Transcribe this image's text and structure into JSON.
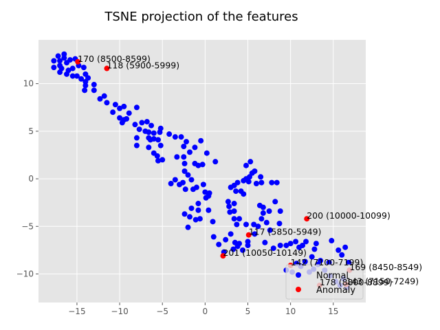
{
  "chart_data": {
    "type": "scatter",
    "title": "TSNE projection of the features",
    "xlabel": "",
    "ylabel": "",
    "xlim": [
      -19.5,
      18.8
    ],
    "ylim": [
      -13.0,
      14.6
    ],
    "xticks": [
      -15,
      -10,
      -5,
      0,
      5,
      10,
      15
    ],
    "yticks": [
      -10,
      -5,
      0,
      5,
      10
    ],
    "grid": true,
    "legend_position": "lower-right",
    "series": [
      {
        "name": "Normal",
        "color": "#0000ff",
        "points": [
          [
            -17.2,
            12.9
          ],
          [
            -16.5,
            13.1
          ],
          [
            -16.5,
            12.7
          ],
          [
            -17.7,
            12.4
          ],
          [
            -17.0,
            12.4
          ],
          [
            -16.2,
            12.2
          ],
          [
            -15.8,
            12.5
          ],
          [
            -15.2,
            12.6
          ],
          [
            -17.7,
            11.7
          ],
          [
            -17.0,
            11.9
          ],
          [
            -16.8,
            11.6
          ],
          [
            -16.0,
            11.4
          ],
          [
            -15.5,
            11.6
          ],
          [
            -14.8,
            11.9
          ],
          [
            -17.0,
            11.2
          ],
          [
            -16.2,
            11.0
          ],
          [
            -15.5,
            10.8
          ],
          [
            -15.0,
            10.8
          ],
          [
            -14.2,
            11.7
          ],
          [
            -14.0,
            11.0
          ],
          [
            -14.5,
            10.5
          ],
          [
            -14.0,
            10.2
          ],
          [
            -13.7,
            10.6
          ],
          [
            -13.0,
            9.9
          ],
          [
            -14.0,
            9.8
          ],
          [
            -14.1,
            9.3
          ],
          [
            -13.0,
            9.3
          ],
          [
            -12.3,
            8.4
          ],
          [
            -11.8,
            8.7
          ],
          [
            -11.5,
            8.0
          ],
          [
            -10.8,
            7.0
          ],
          [
            -10.5,
            7.8
          ],
          [
            -10.0,
            7.4
          ],
          [
            -9.5,
            7.6
          ],
          [
            -8.9,
            6.9
          ],
          [
            -10.0,
            6.4
          ],
          [
            -9.7,
            5.9
          ],
          [
            -9.5,
            6.2
          ],
          [
            -9.2,
            6.3
          ],
          [
            -8.0,
            7.5
          ],
          [
            -8.2,
            5.7
          ],
          [
            -7.7,
            5.2
          ],
          [
            -7.4,
            5.9
          ],
          [
            -6.8,
            6.0
          ],
          [
            -7.0,
            5.0
          ],
          [
            -6.3,
            5.6
          ],
          [
            -6.6,
            4.9
          ],
          [
            -6.0,
            4.8
          ],
          [
            -5.2,
            5.3
          ],
          [
            -5.3,
            4.9
          ],
          [
            -8.0,
            4.3
          ],
          [
            -8.0,
            3.5
          ],
          [
            -6.6,
            4.3
          ],
          [
            -6.4,
            4.1
          ],
          [
            -6.0,
            4.2
          ],
          [
            -5.5,
            4.1
          ],
          [
            -4.2,
            4.7
          ],
          [
            -3.5,
            4.4
          ],
          [
            -2.8,
            4.4
          ],
          [
            -5.2,
            3.5
          ],
          [
            -6.6,
            3.3
          ],
          [
            -6.0,
            2.7
          ],
          [
            -5.6,
            2.4
          ],
          [
            -5.0,
            2.0
          ],
          [
            -5.5,
            1.9
          ],
          [
            -3.3,
            2.3
          ],
          [
            -2.5,
            3.4
          ],
          [
            -2.2,
            3.9
          ],
          [
            -1.8,
            2.8
          ],
          [
            -1.2,
            3.3
          ],
          [
            -0.5,
            4.0
          ],
          [
            -2.5,
            2.3
          ],
          [
            -2.4,
            1.6
          ],
          [
            -1.2,
            1.6
          ],
          [
            -0.8,
            1.4
          ],
          [
            -0.3,
            1.5
          ],
          [
            0.2,
            2.7
          ],
          [
            1.2,
            1.8
          ],
          [
            -4.0,
            -0.5
          ],
          [
            -3.5,
            -0.1
          ],
          [
            -3.0,
            -0.6
          ],
          [
            -2.6,
            -0.4
          ],
          [
            -2.4,
            0.8
          ],
          [
            -2.0,
            0.4
          ],
          [
            -1.6,
            -0.1
          ],
          [
            -1.4,
            -1.1
          ],
          [
            -1.0,
            -0.9
          ],
          [
            -2.3,
            -1.1
          ],
          [
            -1.6,
            -3.1
          ],
          [
            -0.8,
            -2.6
          ],
          [
            -0.8,
            -3.3
          ],
          [
            0.1,
            -2.0
          ],
          [
            0.4,
            -1.8
          ],
          [
            0.0,
            -1.4
          ],
          [
            0.5,
            -1.5
          ],
          [
            -0.2,
            -0.6
          ],
          [
            0.4,
            -3.3
          ],
          [
            -0.6,
            -4.2
          ],
          [
            -2.4,
            -3.7
          ],
          [
            -1.8,
            -4.0
          ],
          [
            -1.1,
            -4.3
          ],
          [
            -2.0,
            -5.1
          ],
          [
            0.9,
            -4.5
          ],
          [
            1.0,
            -6.1
          ],
          [
            1.6,
            -6.9
          ],
          [
            2.2,
            -7.7
          ],
          [
            2.4,
            -6.4
          ],
          [
            2.7,
            -2.4
          ],
          [
            2.8,
            -2.9
          ],
          [
            2.9,
            -3.5
          ],
          [
            3.4,
            -3.4
          ],
          [
            3.4,
            -2.6
          ],
          [
            3.0,
            -0.9
          ],
          [
            3.4,
            -0.7
          ],
          [
            3.8,
            -0.4
          ],
          [
            3.6,
            -1.3
          ],
          [
            4.2,
            -1.3
          ],
          [
            4.5,
            -1.6
          ],
          [
            4.5,
            -0.2
          ],
          [
            4.8,
            0.0
          ],
          [
            5.1,
            -0.3
          ],
          [
            5.5,
            0.6
          ],
          [
            5.8,
            0.8
          ],
          [
            6.0,
            -0.5
          ],
          [
            6.6,
            -0.4
          ],
          [
            6.5,
            0.2
          ],
          [
            6.4,
            -2.8
          ],
          [
            6.8,
            -3.0
          ],
          [
            6.8,
            -3.6
          ],
          [
            7.5,
            -3.4
          ],
          [
            7.8,
            -0.4
          ],
          [
            8.4,
            -0.4
          ],
          [
            8.2,
            -2.4
          ],
          [
            8.8,
            -3.4
          ],
          [
            6.6,
            -4.2
          ],
          [
            7.2,
            -4.6
          ],
          [
            7.6,
            -5.4
          ],
          [
            8.7,
            -4.7
          ],
          [
            4.8,
            1.4
          ],
          [
            5.3,
            1.8
          ],
          [
            5.2,
            0.2
          ],
          [
            3.4,
            -4.2
          ],
          [
            4.0,
            -4.2
          ],
          [
            3.7,
            -4.8
          ],
          [
            4.8,
            -4.8
          ],
          [
            5.7,
            -4.8
          ],
          [
            6.2,
            -5.0
          ],
          [
            3.0,
            -5.8
          ],
          [
            3.5,
            -6.7
          ],
          [
            3.8,
            -7.1
          ],
          [
            4.0,
            -6.8
          ],
          [
            3.3,
            -7.4
          ],
          [
            4.4,
            -7.5
          ],
          [
            5.0,
            -7.0
          ],
          [
            5.0,
            -6.6
          ],
          [
            5.8,
            -5.8
          ],
          [
            7.0,
            -6.7
          ],
          [
            8.0,
            -7.3
          ],
          [
            8.8,
            -7.0
          ],
          [
            9.5,
            -7.0
          ],
          [
            10.0,
            -6.8
          ],
          [
            10.6,
            -6.6
          ],
          [
            11.0,
            -7.2
          ],
          [
            11.4,
            -7.0
          ],
          [
            11.8,
            -6.6
          ],
          [
            12.8,
            -7.4
          ],
          [
            13.0,
            -6.8
          ],
          [
            12.5,
            -8.2
          ],
          [
            13.5,
            -8.6
          ],
          [
            14.5,
            -8.8
          ],
          [
            14.8,
            -6.5
          ],
          [
            15.6,
            -7.5
          ],
          [
            16.0,
            -8.0
          ],
          [
            16.4,
            -7.2
          ],
          [
            16.8,
            -8.8
          ],
          [
            9.5,
            -9.6
          ],
          [
            10.2,
            -9.8
          ],
          [
            10.7,
            -8.9
          ],
          [
            11.2,
            -9.2
          ],
          [
            11.7,
            -8.7
          ],
          [
            12.2,
            -9.8
          ],
          [
            12.7,
            -9.5
          ],
          [
            13.2,
            -9.0
          ],
          [
            14.0,
            -9.6
          ],
          [
            14.6,
            -10.2
          ],
          [
            15.3,
            -10.8
          ],
          [
            15.8,
            -11.2
          ],
          [
            16.2,
            -10.5
          ],
          [
            16.6,
            -11.4
          ]
        ]
      },
      {
        "name": "Anomaly",
        "color": "#ff0000",
        "points": [
          {
            "x": -14.9,
            "y": 12.3,
            "label": "170 (8500-8599)"
          },
          {
            "x": -11.5,
            "y": 11.6,
            "label": "118 (5900-5999)"
          },
          {
            "x": 11.9,
            "y": -4.2,
            "label": "200 (10000-10099)"
          },
          {
            "x": 5.1,
            "y": -5.9,
            "label": "117 (5850-5949)"
          },
          {
            "x": 2.1,
            "y": -8.1,
            "label": "201 (10050-10149)"
          },
          {
            "x": 10.0,
            "y": -9.1,
            "label": "142 (7100-7199)"
          },
          {
            "x": 16.9,
            "y": -9.6,
            "label": "169 (8450-8549)"
          },
          {
            "x": 13.4,
            "y": -11.2,
            "label": "178 (8800-8899)"
          },
          {
            "x": 16.5,
            "y": -11.1,
            "label": "143 (7150-7249)"
          }
        ]
      }
    ]
  }
}
